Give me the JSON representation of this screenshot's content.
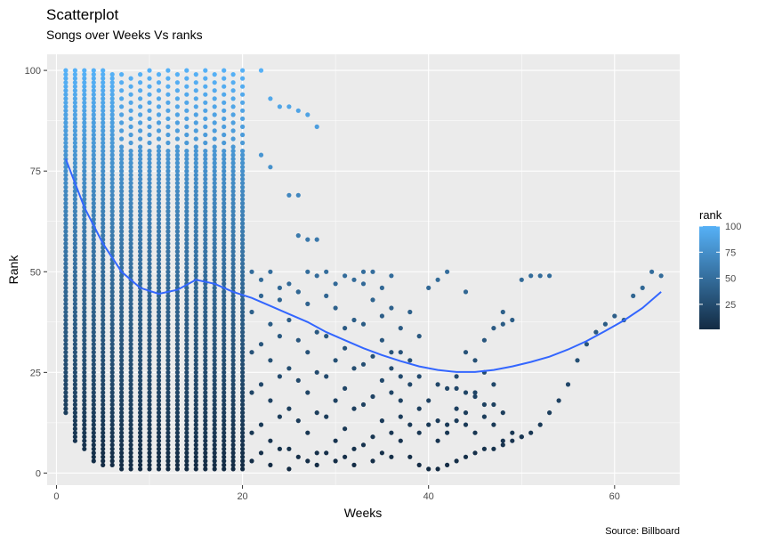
{
  "chart_data": {
    "type": "scatter",
    "title": "Scatterplot",
    "subtitle": "Songs over Weeks Vs ranks",
    "xlabel": "Weeks",
    "ylabel": "Rank",
    "caption": "Source: Billboard",
    "xlim": [
      -1,
      67
    ],
    "ylim": [
      -3,
      104
    ],
    "xticks": [
      0,
      20,
      40,
      60
    ],
    "yticks": [
      0,
      25,
      50,
      75,
      100
    ],
    "grid": true,
    "legend": {
      "title": "rank",
      "position": "right",
      "range": [
        1,
        100
      ],
      "labels": [
        100,
        75,
        50,
        25
      ],
      "color_low": "#132b43",
      "color_high": "#56b1f7"
    },
    "points": [
      [
        22,
        100
      ],
      [
        23,
        93
      ],
      [
        24,
        91
      ],
      [
        25,
        91
      ],
      [
        26,
        90
      ],
      [
        27,
        89
      ],
      [
        28,
        86
      ],
      [
        22,
        79
      ],
      [
        23,
        76
      ],
      [
        25,
        69
      ],
      [
        26,
        69
      ],
      [
        26,
        59
      ],
      [
        27,
        58
      ],
      [
        28,
        58
      ],
      [
        21,
        50
      ],
      [
        22,
        48
      ],
      [
        23,
        50
      ],
      [
        24,
        46
      ],
      [
        25,
        47
      ],
      [
        26,
        45
      ],
      [
        27,
        50
      ],
      [
        28,
        49
      ],
      [
        29,
        50
      ],
      [
        30,
        47
      ],
      [
        31,
        49
      ],
      [
        32,
        48
      ],
      [
        33,
        50
      ],
      [
        34,
        50
      ],
      [
        35,
        46
      ],
      [
        36,
        49
      ],
      [
        21,
        40
      ],
      [
        22,
        44
      ],
      [
        23,
        37
      ],
      [
        24,
        43
      ],
      [
        25,
        38
      ],
      [
        26,
        45
      ],
      [
        27,
        42
      ],
      [
        28,
        35
      ],
      [
        29,
        44
      ],
      [
        30,
        41
      ],
      [
        31,
        36
      ],
      [
        32,
        38
      ],
      [
        33,
        47
      ],
      [
        34,
        43
      ],
      [
        35,
        39
      ],
      [
        36,
        41
      ],
      [
        21,
        30
      ],
      [
        22,
        32
      ],
      [
        23,
        28
      ],
      [
        24,
        34
      ],
      [
        25,
        26
      ],
      [
        26,
        33
      ],
      [
        27,
        30
      ],
      [
        28,
        25
      ],
      [
        29,
        34
      ],
      [
        30,
        28
      ],
      [
        31,
        31
      ],
      [
        32,
        26
      ],
      [
        33,
        37
      ],
      [
        34,
        29
      ],
      [
        35,
        33
      ],
      [
        36,
        30
      ],
      [
        21,
        20
      ],
      [
        22,
        22
      ],
      [
        23,
        18
      ],
      [
        24,
        24
      ],
      [
        25,
        16
      ],
      [
        26,
        23
      ],
      [
        27,
        20
      ],
      [
        28,
        15
      ],
      [
        29,
        24
      ],
      [
        30,
        18
      ],
      [
        31,
        21
      ],
      [
        32,
        16
      ],
      [
        33,
        27
      ],
      [
        34,
        19
      ],
      [
        35,
        23
      ],
      [
        36,
        20
      ],
      [
        21,
        10
      ],
      [
        22,
        12
      ],
      [
        23,
        8
      ],
      [
        24,
        14
      ],
      [
        25,
        6
      ],
      [
        26,
        13
      ],
      [
        27,
        10
      ],
      [
        28,
        5
      ],
      [
        29,
        14
      ],
      [
        30,
        8
      ],
      [
        31,
        11
      ],
      [
        32,
        6
      ],
      [
        33,
        17
      ],
      [
        34,
        9
      ],
      [
        35,
        13
      ],
      [
        36,
        10
      ],
      [
        21,
        3
      ],
      [
        22,
        5
      ],
      [
        23,
        2
      ],
      [
        24,
        6
      ],
      [
        25,
        1
      ],
      [
        26,
        4
      ],
      [
        27,
        3
      ],
      [
        28,
        2
      ],
      [
        29,
        5
      ],
      [
        30,
        3
      ],
      [
        31,
        4
      ],
      [
        32,
        2
      ],
      [
        33,
        7
      ],
      [
        34,
        3
      ],
      [
        35,
        5
      ],
      [
        36,
        4
      ],
      [
        37,
        36
      ],
      [
        38,
        40
      ],
      [
        39,
        34
      ],
      [
        38,
        28
      ],
      [
        37,
        30
      ],
      [
        39,
        24
      ],
      [
        37,
        24
      ],
      [
        36,
        26
      ],
      [
        37,
        18
      ],
      [
        38,
        22
      ],
      [
        39,
        16
      ],
      [
        37,
        14
      ],
      [
        38,
        12
      ],
      [
        39,
        10
      ],
      [
        37,
        8
      ],
      [
        38,
        4
      ],
      [
        39,
        2
      ],
      [
        40,
        18
      ],
      [
        41,
        13
      ],
      [
        42,
        12
      ],
      [
        43,
        16
      ],
      [
        44,
        15
      ],
      [
        45,
        19
      ],
      [
        46,
        25
      ],
      [
        47,
        22
      ],
      [
        48,
        15
      ],
      [
        49,
        10
      ],
      [
        50,
        9
      ],
      [
        51,
        10
      ],
      [
        52,
        12
      ],
      [
        53,
        15
      ],
      [
        54,
        18
      ],
      [
        55,
        22
      ],
      [
        56,
        28
      ],
      [
        57,
        32
      ],
      [
        58,
        35
      ],
      [
        59,
        37
      ],
      [
        60,
        39
      ],
      [
        61,
        38
      ],
      [
        62,
        44
      ],
      [
        63,
        46
      ],
      [
        64,
        50
      ],
      [
        65,
        49
      ],
      [
        40,
        1
      ],
      [
        41,
        1
      ],
      [
        42,
        2
      ],
      [
        43,
        3
      ],
      [
        44,
        4
      ],
      [
        45,
        5
      ],
      [
        46,
        6
      ],
      [
        47,
        6
      ],
      [
        48,
        7
      ],
      [
        49,
        8
      ],
      [
        50,
        9
      ],
      [
        42,
        50
      ],
      [
        41,
        48
      ],
      [
        40,
        46
      ],
      [
        44,
        45
      ],
      [
        46,
        33
      ],
      [
        47,
        36
      ],
      [
        48,
        37
      ],
      [
        49,
        38
      ],
      [
        50,
        48
      ],
      [
        51,
        49
      ],
      [
        52,
        49
      ],
      [
        53,
        49
      ],
      [
        48,
        40
      ],
      [
        44,
        30
      ],
      [
        45,
        28
      ],
      [
        43,
        21
      ],
      [
        44,
        20
      ],
      [
        45,
        20
      ],
      [
        46,
        17
      ],
      [
        47,
        17
      ],
      [
        45,
        10
      ],
      [
        46,
        14
      ],
      [
        47,
        12
      ],
      [
        48,
        8
      ],
      [
        41,
        22
      ],
      [
        42,
        21
      ],
      [
        43,
        24
      ],
      [
        42,
        10
      ],
      [
        41,
        8
      ],
      [
        40,
        12
      ],
      [
        43,
        13
      ],
      [
        44,
        12
      ]
    ],
    "smooth": [
      [
        1,
        78
      ],
      [
        3,
        66
      ],
      [
        5,
        57
      ],
      [
        7,
        50
      ],
      [
        9,
        46
      ],
      [
        11,
        44.5
      ],
      [
        13,
        45.5
      ],
      [
        15,
        48
      ],
      [
        17,
        47
      ],
      [
        19,
        45
      ],
      [
        21,
        43.5
      ],
      [
        23,
        41.5
      ],
      [
        25,
        39.5
      ],
      [
        27,
        37.5
      ],
      [
        29,
        35
      ],
      [
        31,
        33
      ],
      [
        33,
        31
      ],
      [
        35,
        29.3
      ],
      [
        37,
        27.8
      ],
      [
        39,
        26.5
      ],
      [
        41,
        25.6
      ],
      [
        43,
        25.1
      ],
      [
        45,
        25.1
      ],
      [
        47,
        25.6
      ],
      [
        49,
        26.5
      ],
      [
        51,
        27.6
      ],
      [
        53,
        28.9
      ],
      [
        55,
        30.7
      ],
      [
        57,
        32.8
      ],
      [
        59,
        35.3
      ],
      [
        61,
        37.9
      ],
      [
        63,
        41
      ],
      [
        65,
        45
      ]
    ]
  }
}
